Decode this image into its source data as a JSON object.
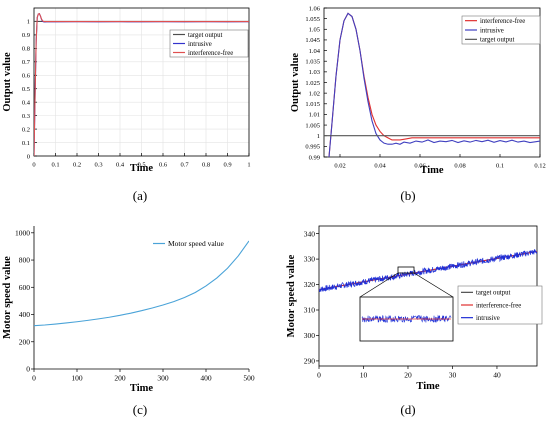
{
  "figure": {
    "panels": [
      "(a)",
      "(b)",
      "(c)",
      "(d)"
    ]
  },
  "chart_data": [
    {
      "id": "a",
      "type": "line",
      "xlabel": "Time",
      "ylabel": "Output value",
      "xlim": [
        0,
        1
      ],
      "ylim": [
        0,
        1.1
      ],
      "xticks": [
        "0",
        "0.1",
        "0.2",
        "0.3",
        "0.4",
        "0.5",
        "0.6",
        "0.7",
        "0.8",
        "0.9",
        "1"
      ],
      "yticks": [
        "0",
        "0.1",
        "0.2",
        "0.3",
        "0.4",
        "0.5",
        "0.6",
        "0.7",
        "0.8",
        "0.9",
        "1"
      ],
      "grid": true,
      "legend_position": "top-right",
      "series": [
        {
          "name": "target output",
          "color": "#4d4d4d",
          "x": [
            0,
            1
          ],
          "y": [
            1,
            1
          ]
        },
        {
          "name": "intrusive",
          "color": "#3333cc",
          "x": [
            0,
            0.005,
            0.01,
            0.015,
            0.02,
            0.025,
            0.03,
            0.035,
            0.04,
            0.045,
            0.05,
            0.06,
            0.08,
            0.1,
            0.2,
            0.3,
            0.4,
            0.5,
            0.6,
            0.7,
            0.8,
            0.9,
            1
          ],
          "y": [
            0,
            0.45,
            0.85,
            1.03,
            1.055,
            1.058,
            1.04,
            1.015,
            1.0,
            0.997,
            0.996,
            0.997,
            0.998,
            0.997,
            0.998,
            0.997,
            0.998,
            0.997,
            0.998,
            0.997,
            0.998,
            0.997,
            0.998
          ]
        },
        {
          "name": "interference-free",
          "color": "#e05050",
          "x": [
            0,
            0.005,
            0.01,
            0.015,
            0.02,
            0.025,
            0.03,
            0.035,
            0.04,
            0.045,
            0.05,
            0.06,
            0.08,
            0.1,
            0.2,
            0.5,
            1
          ],
          "y": [
            0,
            0.45,
            0.85,
            1.03,
            1.055,
            1.058,
            1.04,
            1.018,
            1.005,
            1.0,
            0.999,
            0.999,
            0.999,
            0.999,
            0.999,
            0.999,
            0.999
          ]
        }
      ]
    },
    {
      "id": "b",
      "type": "line",
      "xlabel": "Time",
      "ylabel": "Output value",
      "xlim": [
        0.012,
        0.12
      ],
      "ylim": [
        0.99,
        1.06
      ],
      "xticks": [
        0.02,
        0.04,
        0.06,
        0.08,
        0.1,
        0.12
      ],
      "xtick_labels": [
        "0.02",
        "0.04",
        "0.06",
        "0.08",
        "0.1",
        "0.12"
      ],
      "yticks": [
        0.99,
        0.995,
        1,
        1.005,
        1.01,
        1.015,
        1.02,
        1.025,
        1.03,
        1.035,
        1.04,
        1.045,
        1.05,
        1.055,
        1.06
      ],
      "ytick_labels": [
        "0.99",
        "0.995",
        "1",
        "1.005",
        "1.01",
        "1.015",
        "1.02",
        "1.025",
        "1.03",
        "1.035",
        "1.04",
        "1.045",
        "1.05",
        "1.055",
        "1.06"
      ],
      "grid": false,
      "legend_position": "top-right",
      "series": [
        {
          "name": "interference-free",
          "color": "#e03030",
          "x": [
            0.0145,
            0.016,
            0.018,
            0.02,
            0.022,
            0.024,
            0.026,
            0.028,
            0.03,
            0.032,
            0.034,
            0.036,
            0.038,
            0.04,
            0.042,
            0.044,
            0.046,
            0.048,
            0.05,
            0.053,
            0.056,
            0.06,
            0.065,
            0.07,
            0.08,
            0.09,
            0.1,
            0.11,
            0.12
          ],
          "y": [
            0.99,
            1.006,
            1.028,
            1.045,
            1.054,
            1.0575,
            1.056,
            1.05,
            1.04,
            1.028,
            1.018,
            1.01,
            1.005,
            1.002,
            1.0,
            0.999,
            0.998,
            0.998,
            0.998,
            0.9985,
            0.999,
            0.999,
            0.999,
            0.999,
            0.999,
            0.999,
            0.999,
            0.999,
            0.999
          ]
        },
        {
          "name": "intrusive",
          "color": "#4040c0",
          "x": [
            0.0145,
            0.016,
            0.018,
            0.02,
            0.022,
            0.024,
            0.026,
            0.028,
            0.03,
            0.032,
            0.034,
            0.036,
            0.038,
            0.04,
            0.042,
            0.044,
            0.046,
            0.048,
            0.05,
            0.052,
            0.055,
            0.058,
            0.061,
            0.064,
            0.067,
            0.07,
            0.073,
            0.076,
            0.079,
            0.082,
            0.085,
            0.088,
            0.091,
            0.094,
            0.097,
            0.1,
            0.103,
            0.106,
            0.109,
            0.112,
            0.115,
            0.118,
            0.12
          ],
          "y": [
            0.99,
            1.006,
            1.028,
            1.045,
            1.054,
            1.0575,
            1.056,
            1.05,
            1.04,
            1.027,
            1.016,
            1.007,
            1.001,
            0.998,
            0.9965,
            0.996,
            0.996,
            0.9965,
            0.996,
            0.997,
            0.9965,
            0.9975,
            0.997,
            0.998,
            0.9968,
            0.9975,
            0.9972,
            0.9978,
            0.9968,
            0.9976,
            0.997,
            0.9978,
            0.9972,
            0.9979,
            0.9969,
            0.9977,
            0.9971,
            0.9979,
            0.997,
            0.9975,
            0.9968,
            0.9972,
            0.9975
          ]
        },
        {
          "name": "target output",
          "color": "#555555",
          "x": [
            0.012,
            0.12
          ],
          "y": [
            1,
            1
          ]
        }
      ]
    },
    {
      "id": "c",
      "type": "line",
      "xlabel": "Time",
      "ylabel": "Motor speed value",
      "xlim": [
        0,
        500
      ],
      "ylim": [
        0,
        1050
      ],
      "xticks": [
        0,
        100,
        200,
        300,
        400,
        500
      ],
      "xtick_labels": [
        "0",
        "100",
        "200",
        "300",
        "400",
        "500"
      ],
      "yticks": [
        0,
        200,
        400,
        600,
        800,
        1000
      ],
      "ytick_labels": [
        "0",
        "200",
        "400",
        "600",
        "800",
        "1000"
      ],
      "grid": false,
      "legend_position": "top-right",
      "series": [
        {
          "name": "Motor speed value",
          "color": "#4aa3d8",
          "x": [
            0,
            25,
            50,
            75,
            100,
            125,
            150,
            175,
            200,
            225,
            250,
            275,
            300,
            325,
            350,
            375,
            400,
            425,
            450,
            475,
            500
          ],
          "y": [
            318,
            323,
            330,
            338,
            347,
            357,
            368,
            380,
            394,
            410,
            428,
            448,
            470,
            495,
            525,
            562,
            610,
            668,
            740,
            830,
            940
          ]
        }
      ]
    },
    {
      "id": "d",
      "type": "line",
      "xlabel": "Time",
      "ylabel": "Motor speed value",
      "xlim": [
        0,
        49
      ],
      "ylim": [
        288,
        343
      ],
      "xticks": [
        0,
        10,
        20,
        30,
        40
      ],
      "xtick_labels": [
        "0",
        "10",
        "20",
        "30",
        "40"
      ],
      "yticks": [
        290,
        300,
        310,
        320,
        330,
        340
      ],
      "ytick_labels": [
        "290",
        "300",
        "310",
        "320",
        "330",
        "340"
      ],
      "grid": false,
      "legend_position": "center-right",
      "series": [
        {
          "name": "target output",
          "color": "#4d4d4d",
          "x": [
            0,
            49
          ],
          "y": [
            318,
            333
          ]
        },
        {
          "name": "interference-free",
          "color": "#e03030",
          "x": [
            0,
            49
          ],
          "y": [
            318,
            333
          ]
        },
        {
          "name": "intrusive",
          "color": "#1f2fd6",
          "x": [
            0,
            49
          ],
          "y": [
            318,
            333
          ],
          "noise": 1.2
        }
      ]
    }
  ]
}
